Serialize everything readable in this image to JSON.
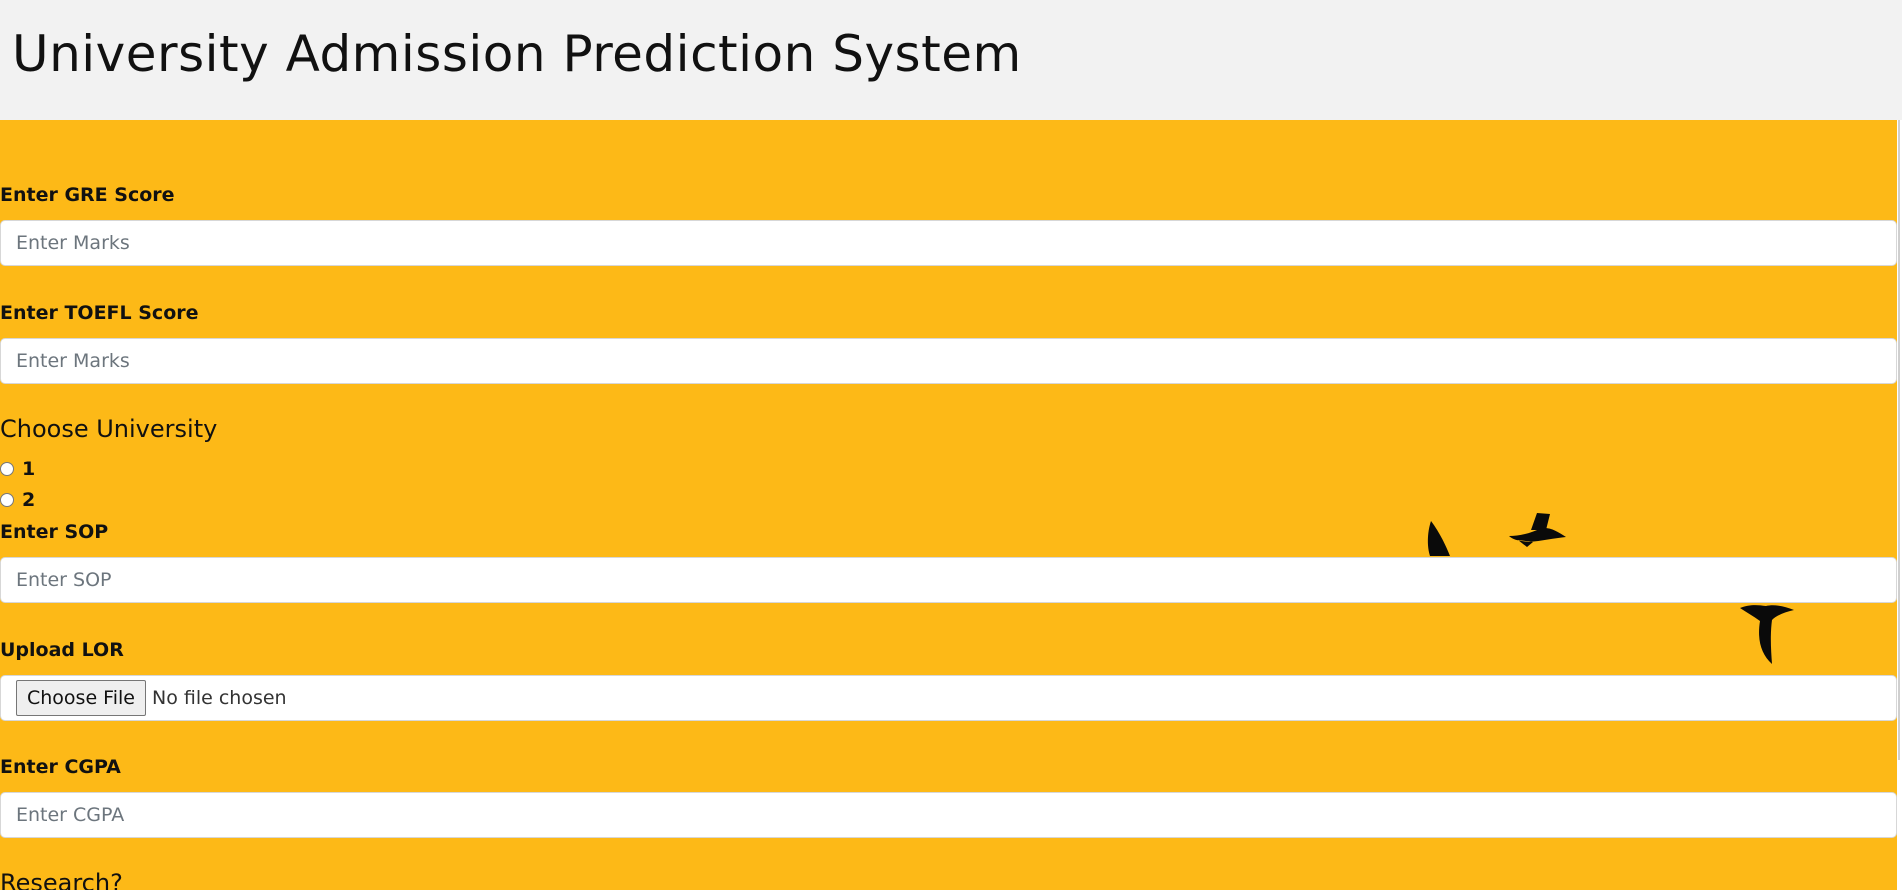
{
  "header": {
    "title": "University Admission Prediction System"
  },
  "form": {
    "gre": {
      "label": "Enter GRE Score",
      "placeholder": "Enter Marks",
      "value": ""
    },
    "toefl": {
      "label": "Enter TOEFL Score",
      "placeholder": "Enter Marks",
      "value": ""
    },
    "university": {
      "heading": "Choose University",
      "options": [
        {
          "label": "1",
          "checked": false
        },
        {
          "label": "2",
          "checked": false
        }
      ]
    },
    "sop": {
      "label": "Enter SOP",
      "placeholder": "Enter SOP",
      "value": ""
    },
    "lor": {
      "label": "Upload LOR",
      "button_label": "Choose File",
      "status": "No file chosen"
    },
    "cgpa": {
      "label": "Enter CGPA",
      "placeholder": "Enter CGPA",
      "value": ""
    },
    "research": {
      "heading": "Research?"
    }
  },
  "colors": {
    "header_bg": "#f2f2f2",
    "form_bg": "#fdb917",
    "bird": "#0a0a0a"
  },
  "decorations": {
    "icons": [
      "bird-icon",
      "bird-icon",
      "bird-icon"
    ]
  }
}
